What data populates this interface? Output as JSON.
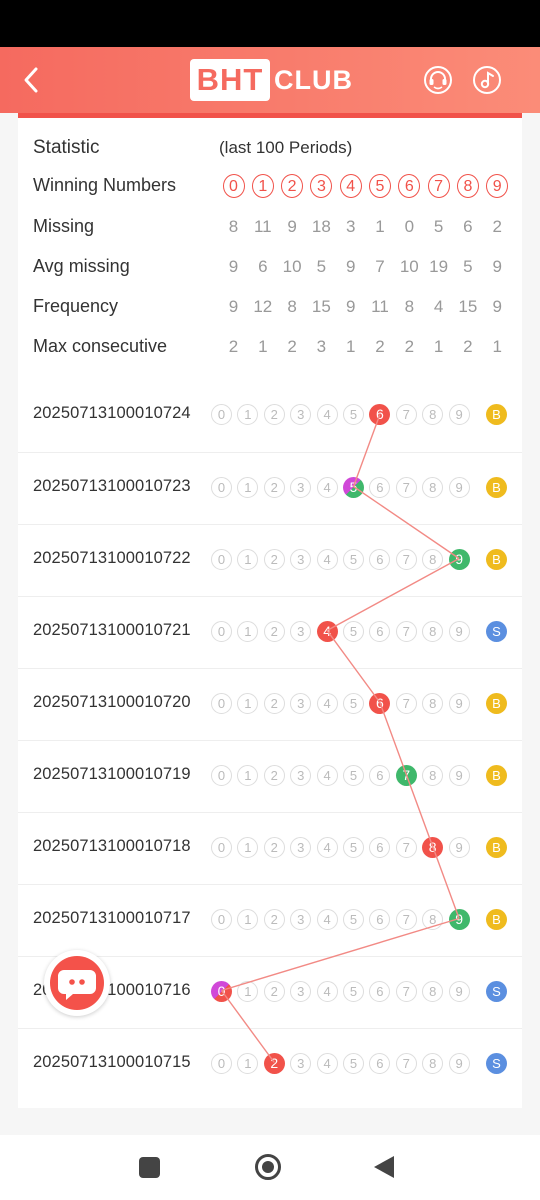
{
  "header": {
    "logo_left": "BHT",
    "logo_right": "CLUB"
  },
  "stats": {
    "title": "Statistic",
    "subtitle": "(last 100 Periods)",
    "winning_label": "Winning Numbers",
    "winning_numbers": [
      "0",
      "1",
      "2",
      "3",
      "4",
      "5",
      "6",
      "7",
      "8",
      "9"
    ],
    "rows": [
      {
        "label": "Missing",
        "values": [
          "8",
          "11",
          "9",
          "18",
          "3",
          "1",
          "0",
          "5",
          "6",
          "2"
        ]
      },
      {
        "label": "Avg missing",
        "values": [
          "9",
          "6",
          "10",
          "5",
          "9",
          "7",
          "10",
          "19",
          "5",
          "9"
        ]
      },
      {
        "label": "Frequency",
        "values": [
          "9",
          "12",
          "8",
          "15",
          "9",
          "11",
          "8",
          "4",
          "15",
          "9"
        ]
      },
      {
        "label": "Max consecutive",
        "values": [
          "2",
          "1",
          "2",
          "3",
          "1",
          "2",
          "2",
          "1",
          "2",
          "1"
        ]
      }
    ]
  },
  "history": [
    {
      "period": "20250713100010724",
      "winner": 6,
      "size": "B"
    },
    {
      "period": "20250713100010723",
      "winner": 5,
      "size": "B"
    },
    {
      "period": "20250713100010722",
      "winner": 9,
      "size": "B"
    },
    {
      "period": "20250713100010721",
      "winner": 4,
      "size": "S"
    },
    {
      "period": "20250713100010720",
      "winner": 6,
      "size": "B"
    },
    {
      "period": "20250713100010719",
      "winner": 7,
      "size": "B"
    },
    {
      "period": "20250713100010718",
      "winner": 8,
      "size": "B"
    },
    {
      "period": "20250713100010717",
      "winner": 9,
      "size": "B"
    },
    {
      "period": "20250713100010716",
      "winner": 0,
      "size": "S"
    },
    {
      "period": "20250713100010715",
      "winner": 2,
      "size": "S"
    }
  ],
  "colors": {
    "red": "#f1524a",
    "green": "#3fb86b",
    "violet": "#d048d8",
    "big": "#efbb1e",
    "small": "#5b8fe0",
    "trend_line": "#f28a85"
  },
  "icons": {
    "back": "chevron-left-icon",
    "support": "headset-icon",
    "music": "music-note-icon",
    "chat": "chat-bubble-icon"
  }
}
